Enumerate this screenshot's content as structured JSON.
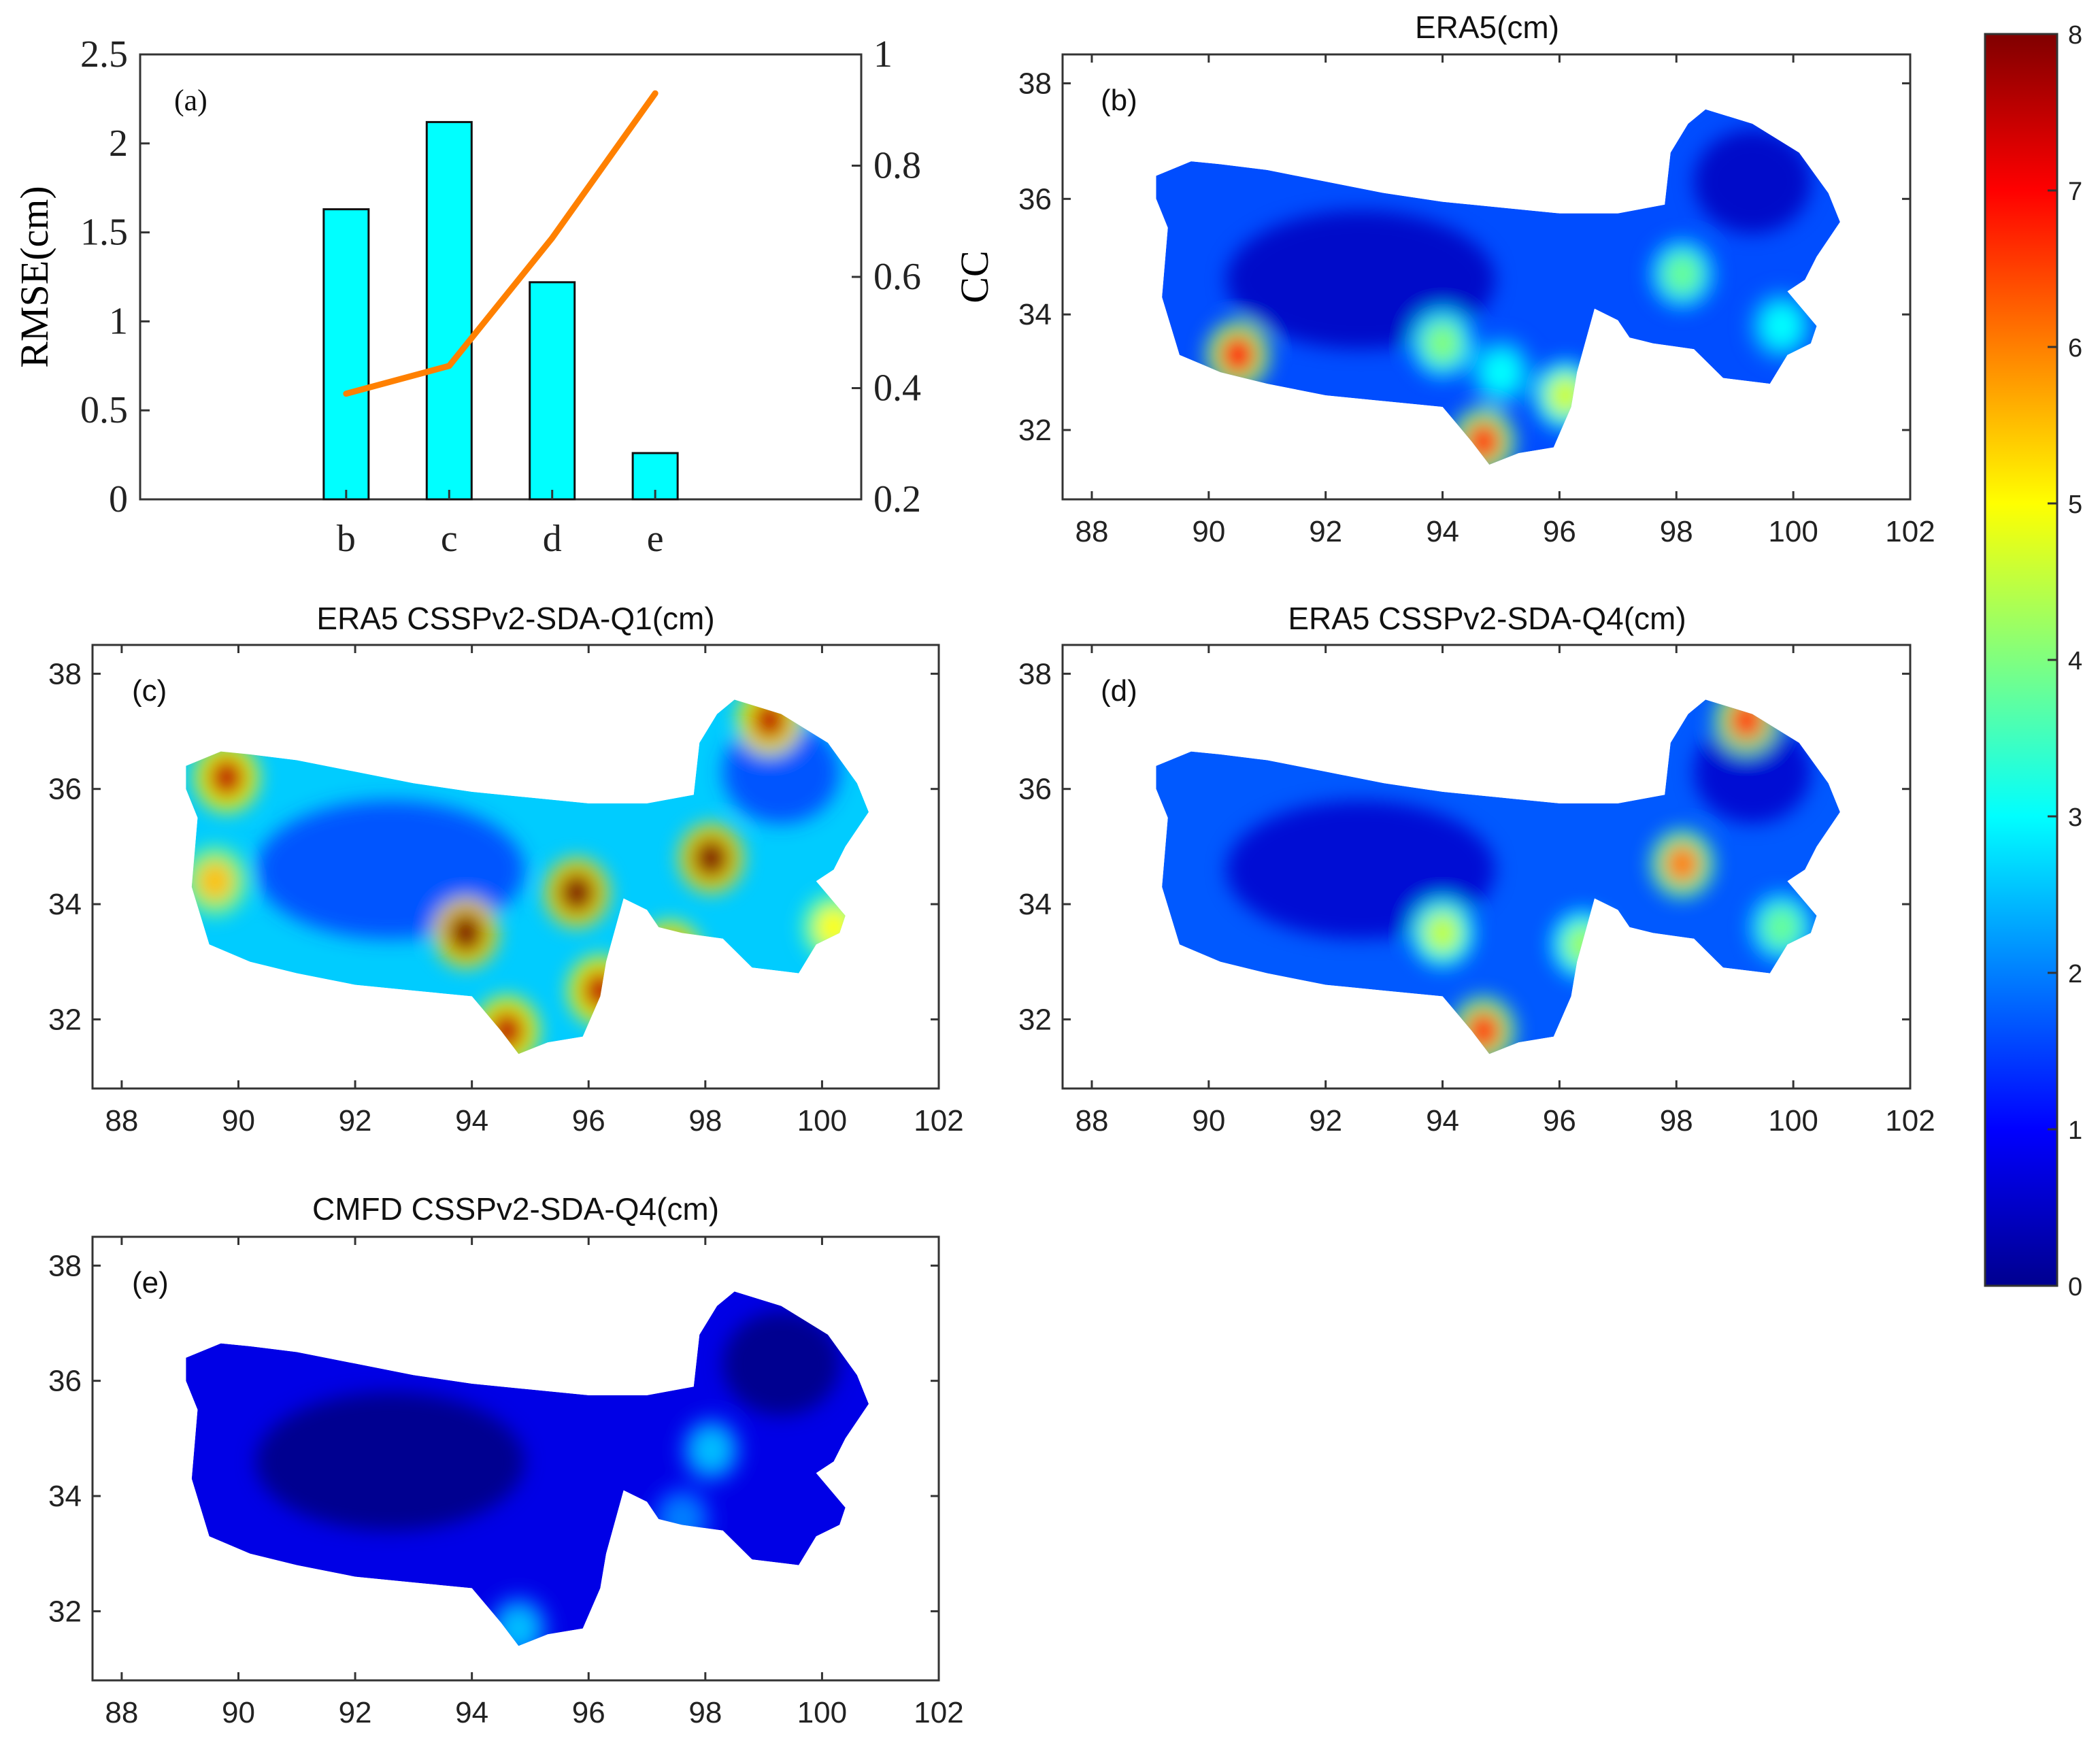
{
  "chart_data": [
    {
      "id": "a",
      "type": "bar",
      "panel_label": "(a)",
      "categories": [
        "b",
        "c",
        "d",
        "e"
      ],
      "series": [
        {
          "name": "RMSE(cm)",
          "type": "bar",
          "axis": "left",
          "values": [
            1.63,
            2.12,
            1.22,
            0.26
          ],
          "color": "#00ffff"
        },
        {
          "name": "CC",
          "type": "line",
          "axis": "right",
          "values": [
            0.39,
            0.44,
            0.67,
            0.93
          ],
          "color": "#ff8000"
        }
      ],
      "ylabel": "RMSE(cm)",
      "ylim": [
        0,
        2.5
      ],
      "yticks": [
        "0",
        "0.5",
        "1",
        "1.5",
        "2",
        "2.5"
      ],
      "y2label": "CC",
      "y2lim": [
        0.2,
        1.0
      ],
      "y2ticks": [
        "0.2",
        "0.4",
        "0.6",
        "0.8",
        "1"
      ]
    },
    {
      "id": "b",
      "type": "heatmap",
      "title": "ERA5(cm)",
      "panel_label": "(b)",
      "xlim": [
        87.5,
        102
      ],
      "ylim": [
        30.8,
        38.5
      ],
      "xticks": [
        "88",
        "90",
        "92",
        "94",
        "96",
        "98",
        "100",
        "102"
      ],
      "yticks": [
        "32",
        "34",
        "36",
        "38"
      ],
      "mean_value": 1.6,
      "hotspots": [
        {
          "lon": 90.5,
          "lat": 33.3,
          "value": 6.8
        },
        {
          "lon": 94.0,
          "lat": 33.5,
          "value": 4.0
        },
        {
          "lon": 96.1,
          "lat": 32.6,
          "value": 4.6
        },
        {
          "lon": 94.7,
          "lat": 31.8,
          "value": 6.5
        },
        {
          "lon": 98.1,
          "lat": 34.7,
          "value": 3.8
        },
        {
          "lon": 95.0,
          "lat": 33.0,
          "value": 3.0
        },
        {
          "lon": 99.8,
          "lat": 33.8,
          "value": 3.0
        }
      ]
    },
    {
      "id": "c",
      "type": "heatmap",
      "title": "ERA5 CSSPv2-SDA-Q1(cm)",
      "panel_label": "(c)",
      "xlim": [
        87.5,
        102
      ],
      "ylim": [
        30.8,
        38.5
      ],
      "xticks": [
        "88",
        "90",
        "92",
        "94",
        "96",
        "98",
        "100",
        "102"
      ],
      "yticks": [
        "32",
        "34",
        "36",
        "38"
      ],
      "mean_value": 2.6,
      "hotspots": [
        {
          "lon": 89.8,
          "lat": 36.2,
          "value": 7.5
        },
        {
          "lon": 89.6,
          "lat": 34.4,
          "value": 5.5
        },
        {
          "lon": 93.9,
          "lat": 33.5,
          "value": 8.0
        },
        {
          "lon": 95.8,
          "lat": 34.2,
          "value": 8.0
        },
        {
          "lon": 96.2,
          "lat": 32.5,
          "value": 7.5
        },
        {
          "lon": 98.1,
          "lat": 34.8,
          "value": 8.0
        },
        {
          "lon": 94.6,
          "lat": 31.8,
          "value": 7.5
        },
        {
          "lon": 97.4,
          "lat": 33.1,
          "value": 7.5
        },
        {
          "lon": 100.2,
          "lat": 33.6,
          "value": 5.0
        },
        {
          "lon": 99.1,
          "lat": 37.2,
          "value": 7.5
        }
      ]
    },
    {
      "id": "d",
      "type": "heatmap",
      "title": "ERA5 CSSPv2-SDA-Q4(cm)",
      "panel_label": "(d)",
      "xlim": [
        87.5,
        102
      ],
      "ylim": [
        30.8,
        38.5
      ],
      "xticks": [
        "88",
        "90",
        "92",
        "94",
        "96",
        "98",
        "100",
        "102"
      ],
      "yticks": [
        "32",
        "34",
        "36",
        "38"
      ],
      "mean_value": 1.7,
      "hotspots": [
        {
          "lon": 98.1,
          "lat": 34.7,
          "value": 6.0
        },
        {
          "lon": 94.0,
          "lat": 33.5,
          "value": 4.5
        },
        {
          "lon": 94.7,
          "lat": 31.8,
          "value": 6.5
        },
        {
          "lon": 96.4,
          "lat": 33.3,
          "value": 4.2
        },
        {
          "lon": 99.8,
          "lat": 33.6,
          "value": 3.8
        },
        {
          "lon": 99.2,
          "lat": 37.2,
          "value": 6.5
        }
      ]
    },
    {
      "id": "e",
      "type": "heatmap",
      "title": "CMFD CSSPv2-SDA-Q4(cm)",
      "panel_label": "(e)",
      "xlim": [
        87.5,
        102
      ],
      "ylim": [
        30.8,
        38.5
      ],
      "xticks": [
        "88",
        "90",
        "92",
        "94",
        "96",
        "98",
        "100",
        "102"
      ],
      "yticks": [
        "32",
        "34",
        "36",
        "38"
      ],
      "mean_value": 0.8,
      "hotspots": [
        {
          "lon": 98.1,
          "lat": 34.8,
          "value": 2.5
        },
        {
          "lon": 97.6,
          "lat": 33.6,
          "value": 2.0
        },
        {
          "lon": 94.8,
          "lat": 31.7,
          "value": 2.5
        }
      ]
    }
  ],
  "colorbar": {
    "min": 0,
    "max": 8,
    "ticks": [
      "0",
      "1",
      "2",
      "3",
      "4",
      "5",
      "6",
      "7",
      "8"
    ],
    "colormap": "jet"
  },
  "region_outline": [
    [
      89.1,
      36.4
    ],
    [
      89.7,
      36.65
    ],
    [
      90.2,
      36.6
    ],
    [
      91.0,
      36.5
    ],
    [
      92.0,
      36.3
    ],
    [
      93.0,
      36.1
    ],
    [
      94.0,
      35.95
    ],
    [
      95.0,
      35.85
    ],
    [
      96.0,
      35.75
    ],
    [
      97.0,
      35.75
    ],
    [
      97.8,
      35.9
    ],
    [
      97.9,
      36.8
    ],
    [
      98.2,
      37.3
    ],
    [
      98.5,
      37.55
    ],
    [
      99.3,
      37.3
    ],
    [
      100.1,
      36.8
    ],
    [
      100.6,
      36.1
    ],
    [
      100.8,
      35.6
    ],
    [
      100.4,
      35.0
    ],
    [
      100.2,
      34.6
    ],
    [
      99.9,
      34.4
    ],
    [
      100.4,
      33.8
    ],
    [
      100.3,
      33.5
    ],
    [
      99.9,
      33.3
    ],
    [
      99.6,
      32.8
    ],
    [
      98.8,
      32.9
    ],
    [
      98.3,
      33.4
    ],
    [
      97.6,
      33.5
    ],
    [
      97.2,
      33.6
    ],
    [
      97.0,
      33.9
    ],
    [
      96.6,
      34.1
    ],
    [
      96.3,
      33.0
    ],
    [
      96.2,
      32.4
    ],
    [
      95.9,
      31.7
    ],
    [
      95.3,
      31.6
    ],
    [
      94.8,
      31.4
    ],
    [
      94.5,
      31.8
    ],
    [
      94.0,
      32.4
    ],
    [
      93.0,
      32.5
    ],
    [
      92.0,
      32.6
    ],
    [
      91.0,
      32.8
    ],
    [
      90.2,
      33.0
    ],
    [
      89.5,
      33.3
    ],
    [
      89.2,
      34.3
    ],
    [
      89.3,
      35.5
    ],
    [
      89.1,
      36.0
    ]
  ]
}
